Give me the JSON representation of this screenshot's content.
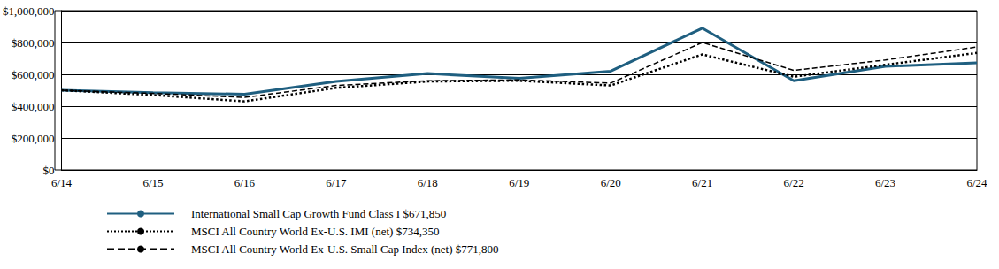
{
  "chart_data": {
    "type": "line",
    "categories": [
      "6/14",
      "6/15",
      "6/16",
      "6/17",
      "6/18",
      "6/19",
      "6/20",
      "6/21",
      "6/22",
      "6/23",
      "6/24"
    ],
    "series": [
      {
        "name": "International Small Cap Growth Fund Class I $671,850",
        "color": "#1f5f80",
        "line_style": "solid",
        "values": [
          500000,
          485000,
          475000,
          555000,
          605000,
          575000,
          620000,
          890000,
          560000,
          650000,
          671850
        ]
      },
      {
        "name": "MSCI All Country World Ex-U.S. IMI (net) $734,350",
        "color": "#000000",
        "line_style": "dotted",
        "values": [
          500000,
          470000,
          430000,
          515000,
          555000,
          560000,
          530000,
          725000,
          585000,
          660000,
          734350
        ]
      },
      {
        "name": "MSCI All Country World Ex-U.S. Small Cap Index (net) $771,800",
        "color": "#000000",
        "line_style": "dashed",
        "values": [
          500000,
          480000,
          455000,
          530000,
          560000,
          565000,
          545000,
          800000,
          625000,
          690000,
          771800
        ]
      }
    ],
    "ylim": [
      0,
      1000000
    ],
    "yticks": [
      {
        "value": 0,
        "label": "$0"
      },
      {
        "value": 200000,
        "label": "$200,000"
      },
      {
        "value": 400000,
        "label": "$400,000"
      },
      {
        "value": 600000,
        "label": "$600,000"
      },
      {
        "value": 800000,
        "label": "$800,000"
      },
      {
        "value": 1000000,
        "label": "$1,000,000"
      }
    ],
    "grid": true,
    "legend": "bottom"
  }
}
